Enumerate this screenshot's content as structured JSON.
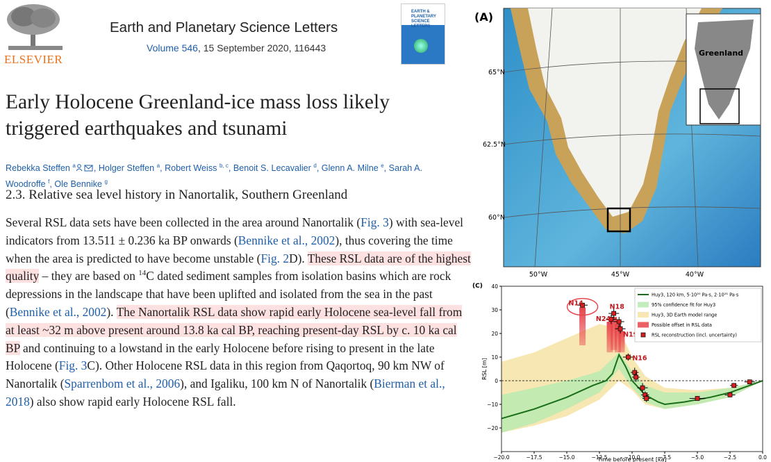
{
  "journal": {
    "publisher": "ELSEVIER",
    "name": "Earth and Planetary Science Letters",
    "volume": "Volume 546",
    "issue_info": ", 15 September 2020, 116443",
    "cover_title": "EARTH & PLANETARY SCIENCE LETTERS"
  },
  "article": {
    "title": "Early Holocene Greenland-ice mass loss likely triggered earthquakes and tsunami",
    "authors": [
      {
        "text": "Rebekka Steffen "
      },
      {
        "sup": "a"
      },
      {
        "icons": true
      },
      {
        "text": ", Holger Steffen "
      },
      {
        "sup": "a"
      },
      {
        "text": ", Robert Weiss "
      },
      {
        "sup": "b, c"
      },
      {
        "text": ", Benoit S. Lecavalier "
      },
      {
        "sup": "d"
      },
      {
        "text": ", Glenn A. Milne "
      },
      {
        "sup": "e"
      },
      {
        "text": ", Sarah A. Woodroffe "
      },
      {
        "sup": "f"
      },
      {
        "text": ", Ole Bennike "
      },
      {
        "sup": "g"
      }
    ]
  },
  "section": {
    "heading": "2.3. Relative sea level history in Nanortalik, Southern Greenland",
    "paragraph": [
      {
        "text": "Several RSL data sets have been collected in the area around Nanortalik ("
      },
      {
        "text": "Fig. 3",
        "style": "link"
      },
      {
        "text": ") with sea-level indicators from 13.511 ± 0.236 ka BP onwards ("
      },
      {
        "text": "Bennike et al., 2002",
        "style": "link"
      },
      {
        "text": "), thus covering the time when the area is predicted to have become unstable ("
      },
      {
        "text": "Fig. 2",
        "style": "link"
      },
      {
        "text": "D). "
      },
      {
        "text": "These RSL data are of the highest quality",
        "style": "highlight"
      },
      {
        "text": " – they are based on "
      },
      {
        "text": "14",
        "style": "sup"
      },
      {
        "text": "C dated sediment samples from isolation basins which are rock depressions in the landscape that have been uplifted and isolated from the sea in the past ("
      },
      {
        "text": "Bennike et al., 2002",
        "style": "link"
      },
      {
        "text": "). "
      },
      {
        "text": "The Nanortalik RSL data show rapid early Holocene sea-level fall from at least ~32 m above present around 13.8 ka cal BP, reaching present-day RSL by c. 10 ka cal BP",
        "style": "highlight"
      },
      {
        "text": " and continuing to a lowstand in the early Holocene before rising to present in the late Holocene ("
      },
      {
        "text": "Fig. 3",
        "style": "link"
      },
      {
        "text": "C). Other Holocene RSL data in this region from Qaqortoq, 90 km NW of Nanortalik ("
      },
      {
        "text": "Sparrenbom et al., 2006",
        "style": "link"
      },
      {
        "text": "), and Igaliku, 100 km N of Nanortalik ("
      },
      {
        "text": "Bierman et al., 2018",
        "style": "link"
      },
      {
        "text": ") also show rapid early Holocene RSL fall."
      }
    ]
  },
  "figure_a": {
    "label": "(A)",
    "lat_labels": [
      "65°N",
      "62.5°N",
      "60°N"
    ],
    "lon_labels": [
      "50°W",
      "45°W",
      "40°W"
    ],
    "inset_label": "Greenland"
  },
  "chart_data": {
    "type": "rsl",
    "panel_label": "(C)",
    "x_label": "Time before present [ka]",
    "y_label": "RSL [m]",
    "xlim": [
      -20,
      0
    ],
    "ylim": [
      -30,
      40
    ],
    "xticks": [
      {
        "value": -20,
        "label": "−20.0"
      },
      {
        "value": -17.5,
        "label": "−17.5"
      },
      {
        "value": -15,
        "label": "−15.0"
      },
      {
        "value": -12.5,
        "label": "−12.5"
      },
      {
        "value": -10,
        "label": "−10.0"
      },
      {
        "value": -7.5,
        "label": "−7.5"
      },
      {
        "value": -5,
        "label": "−5.0"
      },
      {
        "value": -2.5,
        "label": "−2.5"
      },
      {
        "value": 0,
        "label": "0.0"
      }
    ],
    "yticks": [
      {
        "value": -20,
        "label": "−20"
      },
      {
        "value": -10,
        "label": "−10"
      },
      0,
      10,
      20,
      30,
      40
    ],
    "bands": [
      {
        "name": "Huy3, 3D Earth model range",
        "color": "#f6e3a6",
        "x": [
          -20,
          -17.5,
          -15,
          -12.5,
          -11,
          -10,
          -9,
          -7.5,
          -5,
          -2.5,
          0
        ],
        "upper": [
          8,
          12,
          18,
          24,
          22,
          10,
          2,
          -3,
          -4,
          -3,
          0
        ],
        "lower": [
          -22,
          -19,
          -15,
          -8,
          0,
          -4,
          -10,
          -12,
          -10,
          -7,
          0
        ]
      },
      {
        "name": "95% confidence fit for Huy3",
        "color": "#b9eab0",
        "x": [
          -20,
          -17.5,
          -15,
          -12.5,
          -11,
          -10,
          -9,
          -7.5,
          -5,
          -2.5,
          0
        ],
        "upper": [
          -6,
          -3,
          0,
          4,
          12,
          4,
          -2,
          -5,
          -5,
          -3,
          0
        ],
        "lower": [
          -22,
          -18,
          -12,
          -5,
          5,
          -3,
          -9,
          -12,
          -10,
          -7,
          0
        ]
      }
    ],
    "line": {
      "name": "Huy3, 120 km, 5·10²⁰ Pa·s, 2·10²¹ Pa·s",
      "color": "#1a6e1a",
      "x": [
        -20,
        -17.5,
        -15,
        -13,
        -12,
        -11.5,
        -11,
        -10.5,
        -10,
        -9,
        -8,
        -7.5,
        -6,
        -5,
        -4,
        -2.5,
        -1,
        0
      ],
      "y": [
        -16,
        -12,
        -7,
        -2,
        0,
        3,
        11,
        6,
        0,
        -6,
        -9,
        -10,
        -9,
        -8,
        -7,
        -5,
        -2,
        0
      ]
    },
    "offsets": {
      "name": "Possible offset in RSL data",
      "color": "#e8454a",
      "x": [
        -13.8,
        -11.7,
        -11.4,
        -11.1,
        -10.8
      ],
      "top": [
        31,
        25,
        27,
        24,
        21
      ],
      "bottom": [
        15,
        12,
        13,
        12,
        12
      ]
    },
    "points": {
      "name": "RSL reconstruction (incl. uncertainty)",
      "color": "#d62020",
      "x": [
        -13.8,
        -11.4,
        -11.6,
        -11.0,
        -10.9,
        -10.3,
        -9.8,
        -9.7,
        -9.2,
        -9.0,
        -8.9,
        -5.0,
        -2.5,
        -2.2,
        -1.0
      ],
      "y": [
        32,
        28.5,
        26,
        25,
        22,
        10,
        3.5,
        1.5,
        -3,
        -6,
        -7.5,
        -7.5,
        -6,
        -2,
        -0.5
      ],
      "xerr": [
        0.4,
        0.4,
        0.4,
        0.4,
        0.4,
        0.4,
        0.3,
        0.3,
        0.4,
        0.3,
        0.3,
        0.6,
        0.4,
        0.3,
        0.4
      ],
      "yerr": [
        1,
        2,
        2,
        2,
        2,
        1.5,
        2,
        2,
        2,
        1.5,
        1.5,
        1,
        1,
        1,
        1
      ],
      "labels": [
        "N14",
        "N18",
        "N24",
        null,
        "N19",
        "N16",
        null,
        null,
        null,
        null,
        null,
        null,
        null,
        null,
        null
      ]
    }
  }
}
